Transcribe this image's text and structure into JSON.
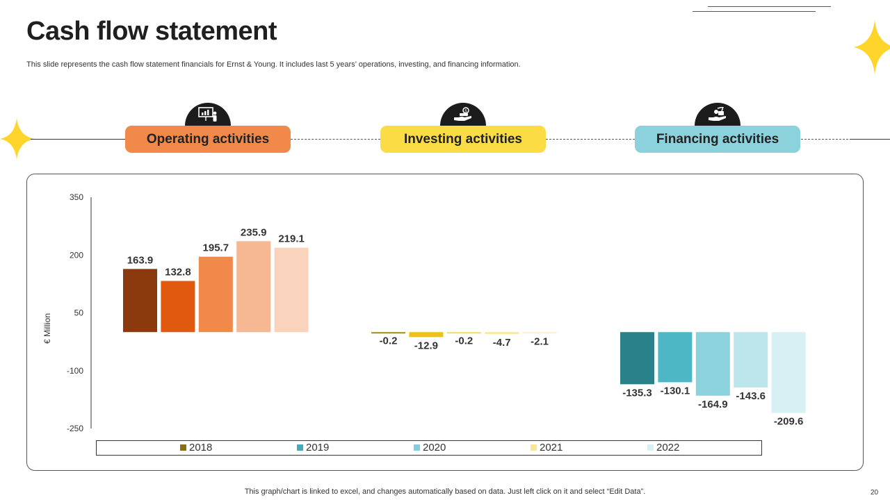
{
  "slide": {
    "title": "Cash flow statement",
    "subtitle": "This slide represents the cash flow statement financials for Ernst & Young. It includes last 5 years’ operations, investing, and financing information.",
    "footer": "This graph/chart is linked to excel,  and changes automatically based on data. Just left click on it and select “Edit Data”.",
    "page_number": "20"
  },
  "sections": [
    {
      "label": "Operating activities",
      "color": "#F0894A",
      "icon": "presentation-icon"
    },
    {
      "label": "Investing activities",
      "color": "#FBDC45",
      "icon": "money-hand-icon"
    },
    {
      "label": "Financing activities",
      "color": "#8CD2DC",
      "icon": "finance-hand-icon"
    }
  ],
  "colors": {
    "star": "#FFD52B"
  },
  "chart_data": {
    "type": "bar",
    "title": "",
    "xlabel": "",
    "ylabel": "€ Million",
    "ylim": [
      -250,
      350
    ],
    "yticks": [
      350,
      200,
      50,
      -100,
      -250
    ],
    "categories": [
      "Operating activities",
      "Investing activities",
      "Financing activities"
    ],
    "series": [
      {
        "name": "2018",
        "values": [
          163.9,
          -0.2,
          -135.3
        ],
        "labels": [
          "163.9",
          "-0.2",
          "-135.3"
        ]
      },
      {
        "name": "2019",
        "values": [
          132.8,
          -12.9,
          -130.1
        ],
        "labels": [
          "132.8",
          "-12.9",
          "-130.1"
        ]
      },
      {
        "name": "2020",
        "values": [
          195.7,
          -0.2,
          -164.9
        ],
        "labels": [
          "195.7",
          "-0.2",
          "-164.9"
        ]
      },
      {
        "name": "2021",
        "values": [
          235.9,
          -4.7,
          -143.6
        ],
        "labels": [
          "235.9",
          "-4.7",
          "-143.6"
        ]
      },
      {
        "name": "2022",
        "values": [
          219.1,
          -2.1,
          -209.6
        ],
        "labels": [
          "219.1",
          "-2.1",
          "-209.6"
        ]
      }
    ],
    "bar_colors": [
      [
        "#8B3A0E",
        "#E0590F",
        "#F0894A",
        "#F6B893",
        "#FAD3BC"
      ],
      [
        "#A88714",
        "#EDC117",
        "#F8D95F",
        "#FBE594",
        "#FDF0C6"
      ],
      [
        "#2A8189",
        "#4DB7C6",
        "#8CD2DC",
        "#BDE6EC",
        "#D6F0F3"
      ]
    ],
    "legend_colors": [
      "#8A6D14",
      "#44AABA",
      "#86CCDA",
      "#FBE594",
      "#D6F0F3"
    ],
    "legend_position": "bottom"
  }
}
